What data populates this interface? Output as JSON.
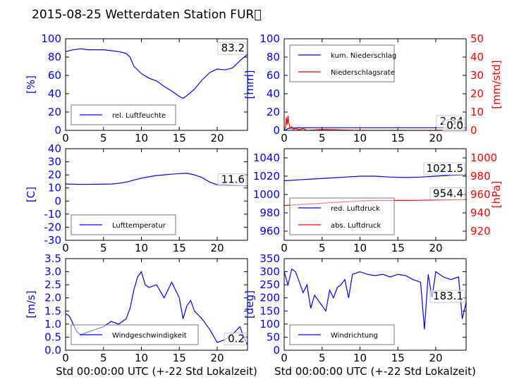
{
  "title": "2015-08-25 Wetterdaten Station FUR\u0000",
  "colors": {
    "primary": "#0000ff",
    "secondary": "#ff0000",
    "fill_light": "#9999ff",
    "axis": "#000000"
  },
  "chart_data": [
    {
      "type": "line",
      "id": "humidity",
      "ylabel": "[%]",
      "xlabel": "",
      "xlim": [
        0,
        24
      ],
      "xticks": [
        0,
        5,
        10,
        15,
        20
      ],
      "ylim": [
        0,
        100
      ],
      "yticks": [
        0,
        20,
        40,
        60,
        80,
        100
      ],
      "legend": {
        "position": "lower-left",
        "entries": [
          "rel. Luftfeuchte"
        ]
      },
      "annotation": "83.2",
      "series": [
        {
          "name": "rel. Luftfeuchte",
          "axis": "left",
          "x": [
            0,
            0.5,
            1,
            2,
            3,
            4,
            5,
            6,
            7,
            8,
            8.5,
            9,
            10,
            11,
            12,
            13,
            14,
            15,
            15.5,
            16,
            17,
            18,
            19,
            20,
            21,
            22,
            23,
            24
          ],
          "y": [
            86,
            87,
            88,
            89,
            88,
            88,
            88,
            87,
            86,
            84,
            80,
            70,
            62,
            57,
            54,
            48,
            43,
            37,
            35,
            38,
            45,
            55,
            63,
            67,
            66,
            68,
            76,
            83
          ]
        }
      ]
    },
    {
      "type": "line",
      "id": "precipitation",
      "ylabel": "[mm]",
      "ylabel2": "[mm/std]",
      "xlabel": "",
      "xlim": [
        0,
        24
      ],
      "xticks": [
        0,
        5,
        10,
        15,
        20
      ],
      "ylim": [
        0,
        100
      ],
      "yticks": [
        0,
        20,
        40,
        60,
        80,
        100
      ],
      "y2lim": [
        0,
        50
      ],
      "y2ticks": [
        0,
        10,
        20,
        30,
        40,
        50
      ],
      "legend": {
        "position": "upper-left",
        "entries": [
          "kum. Niederschlag",
          "Niederschlagsrate"
        ]
      },
      "annotations": [
        "2.84",
        "0.0"
      ],
      "series": [
        {
          "name": "kum. Niederschlag",
          "axis": "left",
          "x": [
            0,
            0.3,
            0.5,
            1,
            2,
            5,
            10,
            15,
            20,
            24
          ],
          "y": [
            0,
            0.8,
            2.2,
            2.6,
            2.8,
            2.84,
            2.84,
            2.84,
            2.84,
            2.84
          ]
        },
        {
          "name": "Niederschlagsrate",
          "axis": "right",
          "x": [
            0,
            0.2,
            0.3,
            0.4,
            0.5,
            0.6,
            0.7,
            0.8,
            1.0,
            1.2,
            1.5,
            2,
            2.5,
            3,
            5,
            10,
            15,
            20,
            24
          ],
          "y": [
            0,
            2,
            7,
            3,
            8,
            4,
            3,
            1,
            2,
            0.5,
            1,
            0.3,
            1,
            0,
            0.5,
            0,
            0,
            0,
            0
          ]
        }
      ]
    },
    {
      "type": "line",
      "id": "temperature",
      "ylabel": "[C]",
      "xlabel": "",
      "xlim": [
        0,
        24
      ],
      "xticks": [
        0,
        5,
        10,
        15,
        20
      ],
      "ylim": [
        -30,
        40
      ],
      "yticks": [
        -30,
        -20,
        -10,
        0,
        10,
        20,
        30,
        40
      ],
      "legend": {
        "position": "lower-left",
        "entries": [
          "Lufttemperatur"
        ]
      },
      "annotation": "11.6",
      "series": [
        {
          "name": "Lufttemperatur",
          "axis": "left",
          "x": [
            0,
            2,
            4,
            6,
            7,
            8,
            9,
            10,
            11,
            12,
            13,
            14,
            15,
            16,
            17,
            18,
            19,
            20,
            21,
            22,
            23,
            24
          ],
          "y": [
            13,
            12.7,
            12.8,
            13,
            13.5,
            14.5,
            16,
            17.5,
            18.5,
            19.5,
            20,
            20.5,
            21,
            21.2,
            20,
            18,
            14.5,
            12.5,
            12.3,
            12,
            11.8,
            11.6
          ]
        }
      ]
    },
    {
      "type": "line",
      "id": "pressure",
      "ylabel": "",
      "ylabel2": "[hPa]",
      "xlabel": "",
      "xlim": [
        0,
        24
      ],
      "xticks": [
        0,
        5,
        10,
        15,
        20
      ],
      "ylim": [
        950,
        1050
      ],
      "yticks": [
        960,
        980,
        1000,
        1020,
        1040
      ],
      "y2lim": [
        910,
        1010
      ],
      "y2ticks": [
        920,
        940,
        960,
        980,
        1000
      ],
      "legend": {
        "position": "lower-left",
        "entries": [
          "red. Luftdruck",
          "abs. Luftdruck"
        ]
      },
      "annotations": [
        "1021.5",
        "954.4"
      ],
      "series": [
        {
          "name": "red. Luftdruck",
          "axis": "left",
          "x": [
            0,
            2,
            4,
            6,
            8,
            10,
            12,
            14,
            16,
            18,
            20,
            22,
            24
          ],
          "y": [
            1015,
            1016,
            1017,
            1018,
            1019,
            1020,
            1020,
            1019,
            1018.5,
            1019,
            1020,
            1021,
            1021.5
          ]
        },
        {
          "name": "abs. Luftdruck",
          "axis": "right",
          "x": [
            0,
            2,
            4,
            6,
            8,
            10,
            12,
            14,
            16,
            18,
            20,
            22,
            24
          ],
          "y": [
            948,
            949,
            950,
            951,
            952,
            953,
            953.5,
            953.5,
            953.5,
            953.7,
            954,
            954.2,
            954.4
          ]
        }
      ]
    },
    {
      "type": "line",
      "id": "windspeed",
      "ylabel": "[m/s]",
      "xlabel": "Std 00:00:00 UTC (+-22 Std Lokalzeit)",
      "xlim": [
        0,
        24
      ],
      "xticks": [
        0,
        5,
        10,
        15,
        20
      ],
      "ylim": [
        0,
        3.5
      ],
      "yticks": [
        0.0,
        0.5,
        1.0,
        1.5,
        2.0,
        2.5,
        3.0,
        3.5
      ],
      "legend": {
        "position": "lower-center",
        "entries": [
          "Windgeschwindigkeit"
        ]
      },
      "annotation": "0.2",
      "series": [
        {
          "name": "Windgeschwindigkeit",
          "axis": "left",
          "x": [
            0,
            0.5,
            1,
            1.5,
            2,
            3,
            4,
            5,
            6,
            7,
            8,
            8.5,
            9,
            9.5,
            10,
            10.5,
            11,
            12,
            13,
            14,
            15,
            15.5,
            16,
            16.5,
            17,
            18,
            19,
            20,
            21,
            22,
            23,
            23.5,
            24
          ],
          "y": [
            1.4,
            1.3,
            1.0,
            0.7,
            0.6,
            0.7,
            0.8,
            0.9,
            1.1,
            1.0,
            1.2,
            1.6,
            2.3,
            2.8,
            3.0,
            2.5,
            2.4,
            2.5,
            2.0,
            2.6,
            2.0,
            1.2,
            1.7,
            1.9,
            1.5,
            1.2,
            0.8,
            0.3,
            0.4,
            0.6,
            0.9,
            0.5,
            0.2
          ]
        }
      ]
    },
    {
      "type": "line",
      "id": "winddirection",
      "ylabel": "[deg]",
      "xlabel": "Std 00:00:00 UTC (+-22 Std Lokalzeit)",
      "xlim": [
        0,
        24
      ],
      "xticks": [
        0,
        5,
        10,
        15,
        20
      ],
      "ylim": [
        0,
        350
      ],
      "yticks": [
        0,
        50,
        100,
        150,
        200,
        250,
        300,
        350
      ],
      "legend": {
        "position": "lower-left",
        "entries": [
          "Windrichtung"
        ]
      },
      "annotation": "183.1",
      "series": [
        {
          "name": "Windrichtung",
          "axis": "left",
          "x": [
            0,
            0.5,
            1,
            1.5,
            2,
            2.5,
            3,
            3.5,
            4,
            4.5,
            5,
            5.5,
            6,
            6.5,
            7,
            7.5,
            8,
            8.5,
            9,
            10,
            11,
            12,
            13,
            14,
            15,
            16,
            17,
            18,
            18.5,
            19,
            19.5,
            20,
            21,
            22,
            23,
            23.5,
            24
          ],
          "y": [
            300,
            250,
            310,
            300,
            260,
            220,
            250,
            160,
            210,
            190,
            170,
            150,
            230,
            200,
            240,
            250,
            270,
            200,
            290,
            300,
            290,
            285,
            290,
            280,
            290,
            285,
            270,
            260,
            80,
            290,
            200,
            300,
            280,
            270,
            280,
            120,
            183
          ]
        }
      ]
    }
  ]
}
